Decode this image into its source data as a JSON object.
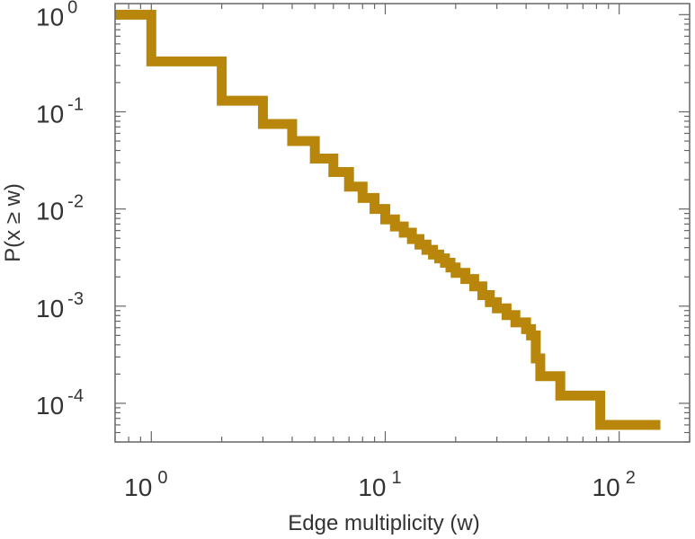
{
  "chart_data": {
    "type": "line",
    "subtype": "step-ccdf",
    "title": "",
    "xlabel": "Edge multiplicity (w)",
    "ylabel": "P(x ≥ w)",
    "xscale": "log",
    "yscale": "log",
    "xlim": [
      0.7,
      200
    ],
    "ylim": [
      4e-05,
      1.3
    ],
    "grid": false,
    "legend": "none",
    "x_ticks": [
      {
        "base": "10",
        "exp": "0",
        "value": 1
      },
      {
        "base": "10",
        "exp": "1",
        "value": 10
      },
      {
        "base": "10",
        "exp": "2",
        "value": 100
      }
    ],
    "y_ticks": [
      {
        "base": "10",
        "exp": "0",
        "value": 1
      },
      {
        "base": "10",
        "exp": "-1",
        "value": 0.1
      },
      {
        "base": "10",
        "exp": "-2",
        "value": 0.01
      },
      {
        "base": "10",
        "exp": "-3",
        "value": 0.001
      },
      {
        "base": "10",
        "exp": "-4",
        "value": 0.0001
      }
    ],
    "series": [
      {
        "color": "#b8860b",
        "x": [
          0.7,
          1,
          2,
          3,
          4,
          5,
          6,
          7,
          8,
          9,
          10,
          11,
          12,
          13,
          14,
          15,
          16,
          17,
          18,
          19,
          20,
          22,
          24,
          26,
          28,
          30,
          33,
          36,
          40,
          42,
          44,
          46,
          56,
          83,
          150
        ],
        "y": [
          1,
          0.33,
          0.13,
          0.075,
          0.05,
          0.033,
          0.024,
          0.017,
          0.013,
          0.01,
          0.0078,
          0.0066,
          0.0057,
          0.0049,
          0.0043,
          0.0038,
          0.0034,
          0.0031,
          0.0028,
          0.0025,
          0.0022,
          0.0019,
          0.0016,
          0.0013,
          0.0011,
          0.00095,
          0.00081,
          0.00068,
          0.00058,
          0.0005,
          0.00029,
          0.00019,
          0.00012,
          6e-05,
          6e-05
        ]
      }
    ]
  }
}
